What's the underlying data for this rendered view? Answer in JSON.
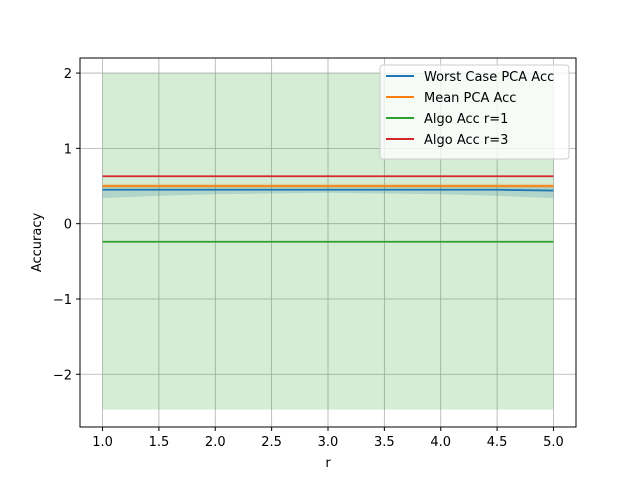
{
  "chart_data": {
    "type": "line",
    "title": "",
    "xlabel": "r",
    "ylabel": "Accuracy",
    "xlim": [
      0.8,
      5.2
    ],
    "ylim": [
      -2.7,
      2.2
    ],
    "x_ticks": [
      1.0,
      1.5,
      2.0,
      2.5,
      3.0,
      3.5,
      4.0,
      4.5,
      5.0
    ],
    "x_tick_labels": [
      "1.0",
      "1.5",
      "2.0",
      "2.5",
      "3.0",
      "3.5",
      "4.0",
      "4.5",
      "5.0"
    ],
    "y_ticks": [
      -2,
      -1,
      0,
      1,
      2
    ],
    "y_tick_labels": [
      "−2",
      "−1",
      "0",
      "1",
      "2"
    ],
    "grid": true,
    "legend_position": "top-right",
    "x": [
      1.0,
      1.5,
      2.0,
      2.5,
      3.0,
      3.5,
      4.0,
      4.5,
      5.0
    ],
    "series": [
      {
        "name": "Worst Case PCA Acc",
        "color": "#1f77b4",
        "values": [
          0.45,
          0.45,
          0.45,
          0.45,
          0.45,
          0.45,
          0.45,
          0.45,
          0.44
        ],
        "band_lower": [
          0.34,
          0.37,
          0.39,
          0.4,
          0.41,
          0.4,
          0.39,
          0.37,
          0.34
        ],
        "band_upper": [
          0.5,
          0.5,
          0.5,
          0.5,
          0.5,
          0.5,
          0.5,
          0.5,
          0.5
        ]
      },
      {
        "name": "Mean PCA Acc",
        "color": "#ff7f0e",
        "values": [
          0.5,
          0.5,
          0.5,
          0.5,
          0.5,
          0.5,
          0.5,
          0.5,
          0.5
        ],
        "band_lower": [
          0.47,
          0.47,
          0.47,
          0.47,
          0.47,
          0.47,
          0.47,
          0.47,
          0.47
        ],
        "band_upper": [
          0.53,
          0.53,
          0.53,
          0.53,
          0.53,
          0.53,
          0.53,
          0.53,
          0.53
        ]
      },
      {
        "name": "Algo Acc r=1",
        "color": "#2ca02c",
        "values": [
          -0.24,
          -0.24,
          -0.24,
          -0.24,
          -0.24,
          -0.24,
          -0.24,
          -0.24,
          -0.24
        ],
        "band_lower": [
          -2.47,
          -2.47,
          -2.47,
          -2.47,
          -2.47,
          -2.47,
          -2.47,
          -2.47,
          -2.47
        ],
        "band_upper": [
          2.0,
          2.0,
          2.0,
          2.0,
          2.0,
          2.0,
          2.0,
          2.0,
          2.0
        ]
      },
      {
        "name": "Algo Acc r=3",
        "color": "#d62728",
        "values": [
          0.63,
          0.63,
          0.63,
          0.63,
          0.63,
          0.63,
          0.63,
          0.63,
          0.63
        ]
      }
    ]
  }
}
